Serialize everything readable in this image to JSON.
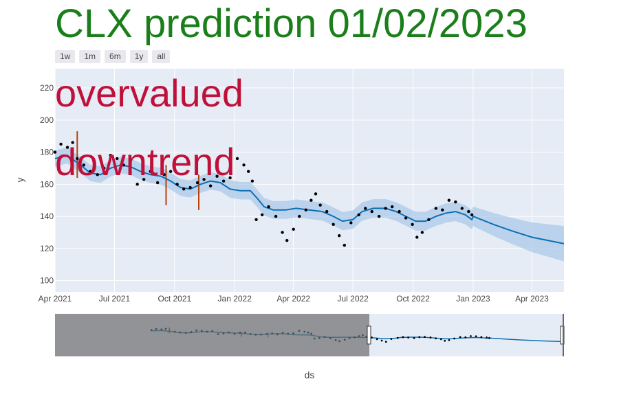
{
  "title": "CLX prediction 01/02/2023",
  "range_buttons": [
    "1w",
    "1m",
    "6m",
    "1y",
    "all"
  ],
  "annotations": [
    "overvalued",
    "downtrend"
  ],
  "colors": {
    "title": "#1a7f1a",
    "annotation": "#c0103a",
    "forecast_line": "#0b6fb5",
    "band": "#a9c8e8",
    "actual": "#000000",
    "changepoint": "#b5410a",
    "plot_bg": "#e5ecf6"
  },
  "chart_data": {
    "type": "line",
    "xlabel": "ds",
    "ylabel": "y",
    "x_ticks": [
      "Apr 2021",
      "Jul 2021",
      "Oct 2021",
      "Jan 2022",
      "Apr 2022",
      "Jul 2022",
      "Oct 2022",
      "Jan 2023",
      "Apr 2023"
    ],
    "y_ticks": [
      100,
      120,
      140,
      160,
      180,
      200,
      220
    ],
    "ylim": [
      93,
      232
    ],
    "xlim": [
      "2021-04-01",
      "2023-05-20"
    ],
    "grid": true,
    "forecast": [
      {
        "x": "2021-04-01",
        "y": 176
      },
      {
        "x": "2021-04-20",
        "y": 178
      },
      {
        "x": "2021-05-10",
        "y": 172
      },
      {
        "x": "2021-05-25",
        "y": 167
      },
      {
        "x": "2021-06-10",
        "y": 166
      },
      {
        "x": "2021-06-25",
        "y": 170
      },
      {
        "x": "2021-07-10",
        "y": 172
      },
      {
        "x": "2021-07-25",
        "y": 171
      },
      {
        "x": "2021-08-10",
        "y": 168
      },
      {
        "x": "2021-08-25",
        "y": 166
      },
      {
        "x": "2021-09-10",
        "y": 165
      },
      {
        "x": "2021-09-25",
        "y": 162
      },
      {
        "x": "2021-10-10",
        "y": 158
      },
      {
        "x": "2021-10-25",
        "y": 157
      },
      {
        "x": "2021-11-10",
        "y": 160
      },
      {
        "x": "2021-11-25",
        "y": 162
      },
      {
        "x": "2021-12-10",
        "y": 161
      },
      {
        "x": "2021-12-25",
        "y": 157
      },
      {
        "x": "2022-01-10",
        "y": 156
      },
      {
        "x": "2022-01-25",
        "y": 156
      },
      {
        "x": "2022-02-05",
        "y": 151
      },
      {
        "x": "2022-02-15",
        "y": 146
      },
      {
        "x": "2022-03-01",
        "y": 144
      },
      {
        "x": "2022-03-20",
        "y": 144
      },
      {
        "x": "2022-04-05",
        "y": 145
      },
      {
        "x": "2022-04-25",
        "y": 144
      },
      {
        "x": "2022-05-15",
        "y": 143
      },
      {
        "x": "2022-06-01",
        "y": 140
      },
      {
        "x": "2022-06-15",
        "y": 137
      },
      {
        "x": "2022-07-01",
        "y": 138
      },
      {
        "x": "2022-07-15",
        "y": 143
      },
      {
        "x": "2022-08-01",
        "y": 145
      },
      {
        "x": "2022-08-20",
        "y": 145
      },
      {
        "x": "2022-09-05",
        "y": 143
      },
      {
        "x": "2022-09-20",
        "y": 140
      },
      {
        "x": "2022-10-05",
        "y": 137
      },
      {
        "x": "2022-10-20",
        "y": 137
      },
      {
        "x": "2022-11-05",
        "y": 140
      },
      {
        "x": "2022-11-20",
        "y": 142
      },
      {
        "x": "2022-12-05",
        "y": 143
      },
      {
        "x": "2022-12-20",
        "y": 141
      },
      {
        "x": "2022-12-30",
        "y": 138
      },
      {
        "x": "2023-01-01",
        "y": 140
      },
      {
        "x": "2023-02-01",
        "y": 135
      },
      {
        "x": "2023-03-01",
        "y": 131
      },
      {
        "x": "2023-04-01",
        "y": 127
      },
      {
        "x": "2023-05-20",
        "y": 123
      }
    ],
    "band_halfwidth": [
      {
        "x": "2021-04-01",
        "y": 5
      },
      {
        "x": "2022-12-30",
        "y": 6
      },
      {
        "x": "2023-05-20",
        "y": 11
      }
    ],
    "actual": [
      {
        "x": "2021-04-01",
        "y": 180
      },
      {
        "x": "2021-04-10",
        "y": 185
      },
      {
        "x": "2021-04-20",
        "y": 183
      },
      {
        "x": "2021-04-28",
        "y": 186
      },
      {
        "x": "2021-05-05",
        "y": 176
      },
      {
        "x": "2021-05-15",
        "y": 172
      },
      {
        "x": "2021-05-25",
        "y": 168
      },
      {
        "x": "2021-06-05",
        "y": 166
      },
      {
        "x": "2021-06-15",
        "y": 170
      },
      {
        "x": "2021-06-25",
        "y": 178
      },
      {
        "x": "2021-07-05",
        "y": 176
      },
      {
        "x": "2021-07-15",
        "y": 172
      },
      {
        "x": "2021-07-25",
        "y": 175
      },
      {
        "x": "2021-08-05",
        "y": 160
      },
      {
        "x": "2021-08-15",
        "y": 163
      },
      {
        "x": "2021-08-25",
        "y": 168
      },
      {
        "x": "2021-09-05",
        "y": 161
      },
      {
        "x": "2021-09-15",
        "y": 166
      },
      {
        "x": "2021-09-25",
        "y": 168
      },
      {
        "x": "2021-10-05",
        "y": 160
      },
      {
        "x": "2021-10-15",
        "y": 157
      },
      {
        "x": "2021-10-25",
        "y": 158
      },
      {
        "x": "2021-11-05",
        "y": 161
      },
      {
        "x": "2021-11-15",
        "y": 163
      },
      {
        "x": "2021-11-25",
        "y": 159
      },
      {
        "x": "2021-12-05",
        "y": 165
      },
      {
        "x": "2021-12-15",
        "y": 162
      },
      {
        "x": "2021-12-25",
        "y": 164
      },
      {
        "x": "2022-01-05",
        "y": 176
      },
      {
        "x": "2022-01-15",
        "y": 172
      },
      {
        "x": "2022-01-22",
        "y": 168
      },
      {
        "x": "2022-01-28",
        "y": 162
      },
      {
        "x": "2022-02-03",
        "y": 138
      },
      {
        "x": "2022-02-12",
        "y": 141
      },
      {
        "x": "2022-02-22",
        "y": 146
      },
      {
        "x": "2022-03-05",
        "y": 140
      },
      {
        "x": "2022-03-15",
        "y": 130
      },
      {
        "x": "2022-03-22",
        "y": 125
      },
      {
        "x": "2022-04-01",
        "y": 132
      },
      {
        "x": "2022-04-10",
        "y": 140
      },
      {
        "x": "2022-04-20",
        "y": 144
      },
      {
        "x": "2022-04-28",
        "y": 150
      },
      {
        "x": "2022-05-05",
        "y": 154
      },
      {
        "x": "2022-05-12",
        "y": 147
      },
      {
        "x": "2022-05-22",
        "y": 143
      },
      {
        "x": "2022-06-01",
        "y": 135
      },
      {
        "x": "2022-06-10",
        "y": 128
      },
      {
        "x": "2022-06-18",
        "y": 122
      },
      {
        "x": "2022-06-28",
        "y": 136
      },
      {
        "x": "2022-07-10",
        "y": 141
      },
      {
        "x": "2022-07-20",
        "y": 145
      },
      {
        "x": "2022-07-30",
        "y": 143
      },
      {
        "x": "2022-08-10",
        "y": 140
      },
      {
        "x": "2022-08-20",
        "y": 145
      },
      {
        "x": "2022-08-30",
        "y": 146
      },
      {
        "x": "2022-09-10",
        "y": 143
      },
      {
        "x": "2022-09-20",
        "y": 139
      },
      {
        "x": "2022-09-30",
        "y": 135
      },
      {
        "x": "2022-10-07",
        "y": 127
      },
      {
        "x": "2022-10-15",
        "y": 130
      },
      {
        "x": "2022-10-25",
        "y": 138
      },
      {
        "x": "2022-11-05",
        "y": 145
      },
      {
        "x": "2022-11-15",
        "y": 144
      },
      {
        "x": "2022-11-25",
        "y": 150
      },
      {
        "x": "2022-12-05",
        "y": 149
      },
      {
        "x": "2022-12-15",
        "y": 145
      },
      {
        "x": "2022-12-25",
        "y": 143
      },
      {
        "x": "2022-12-30",
        "y": 141
      }
    ],
    "changepoints": [
      {
        "x": "2021-05-05",
        "low": 164,
        "high": 193
      },
      {
        "x": "2021-09-18",
        "low": 147,
        "high": 172
      },
      {
        "x": "2021-11-07",
        "low": 144,
        "high": 166
      }
    ]
  }
}
